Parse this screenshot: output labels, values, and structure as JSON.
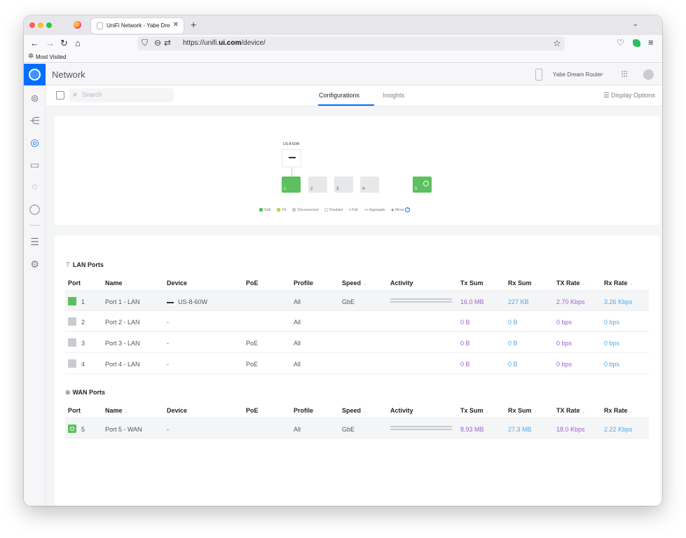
{
  "browser": {
    "tab_title": "UniFi Network - Yabe Dream Ro",
    "url_prefix": "https://unifi.",
    "url_domain": "ui.com",
    "url_path": "/device/",
    "bookmark_label": "Most Visited"
  },
  "app": {
    "title": "Network",
    "device_selector": "Yabe Dream Router"
  },
  "toolbar": {
    "search_placeholder": "Search",
    "tabs": [
      "Configurations",
      "Insights"
    ],
    "display_options": "Display Options"
  },
  "diagram": {
    "device_name": "US-8-60W",
    "ports": [
      "1",
      "2",
      "3",
      "4",
      "5"
    ],
    "legend": {
      "gbe": "GbE",
      "fe": "FE",
      "disconnected": "Disconnected",
      "disabled": "Disabled",
      "poe": "PoE",
      "aggregate": "Aggregate",
      "mirror": "Mirror"
    },
    "colors": {
      "gbe": "#5cc05f",
      "fe": "#c4d83a",
      "disconnected": "#c8ccd1"
    }
  },
  "lan": {
    "title": "LAN Ports",
    "headers": [
      "Port",
      "Name",
      "Device",
      "PoE",
      "Profile",
      "Speed",
      "Activity",
      "Tx Sum",
      "Rx Sum",
      "TX Rate",
      "Rx Rate"
    ],
    "rows": [
      {
        "port": "1",
        "name": "Port 1 - LAN",
        "device": "US-8-60W",
        "poe": "",
        "profile": "All",
        "speed": "GbE",
        "tx_sum": "16.0 MB",
        "rx_sum": "227 KB",
        "tx_rate": "2.70 Kbps",
        "rx_rate": "3.26 Kbps"
      },
      {
        "port": "2",
        "name": "Port 2 - LAN",
        "device": "-",
        "poe": "",
        "profile": "All",
        "speed": "",
        "tx_sum": "0 B",
        "rx_sum": "0 B",
        "tx_rate": "0 bps",
        "rx_rate": "0 bps"
      },
      {
        "port": "3",
        "name": "Port 3 - LAN",
        "device": "-",
        "poe": "PoE",
        "profile": "All",
        "speed": "",
        "tx_sum": "0 B",
        "rx_sum": "0 B",
        "tx_rate": "0 bps",
        "rx_rate": "0 bps"
      },
      {
        "port": "4",
        "name": "Port 4 - LAN",
        "device": "-",
        "poe": "PoE",
        "profile": "All",
        "speed": "",
        "tx_sum": "0 B",
        "rx_sum": "0 B",
        "tx_rate": "0 bps",
        "rx_rate": "0 bps"
      }
    ]
  },
  "wan": {
    "title": "WAN Ports",
    "headers": [
      "Port",
      "Name",
      "Device",
      "PoE",
      "Profile",
      "Speed",
      "Activity",
      "Tx Sum",
      "Rx Sum",
      "TX Rate",
      "Rx Rate"
    ],
    "rows": [
      {
        "port": "5",
        "name": "Port 5 - WAN",
        "device": "-",
        "poe": "",
        "profile": "All",
        "speed": "GbE",
        "tx_sum": "8.93 MB",
        "rx_sum": "27.3 MB",
        "tx_rate": "18.0 Kbps",
        "rx_rate": "2.22 Kbps"
      }
    ]
  },
  "colors": {
    "accent": "#006fff",
    "tx": "#a05fd4",
    "rx": "#4fa8e8"
  }
}
